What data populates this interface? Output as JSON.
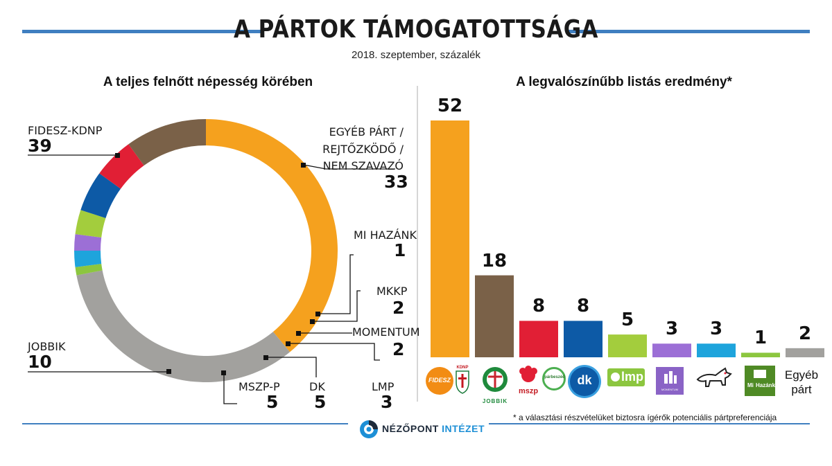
{
  "header": {
    "title": "A PÁRTOK TÁMOGATOTTSÁGA",
    "subtitle": "2018. szeptember, százalék"
  },
  "colors": {
    "fidesz": "#f5a11e",
    "other": "#a2a19e",
    "mihazank": "#8cc63f",
    "mkkp": "#1ea4dc",
    "momentum": "#9c6fd6",
    "lmp": "#a3cd3d",
    "dk": "#0d5aa6",
    "mszp": "#e11f35",
    "jobbik": "#7a6148",
    "accent_line": "#3f7fc0"
  },
  "chart_data": [
    {
      "type": "pie",
      "title": "A teljes felnőtt népesség körében",
      "slices": [
        {
          "label": "FIDESZ-KDNP",
          "value": 39
        },
        {
          "label": "EGYÉB PÁRT / REJTŐZKÖDŐ / NEM SZAVAZÓ",
          "value": 33
        },
        {
          "label": "MI HAZÁNK",
          "value": 1
        },
        {
          "label": "MKKP",
          "value": 2
        },
        {
          "label": "MOMENTUM",
          "value": 2
        },
        {
          "label": "LMP",
          "value": 3
        },
        {
          "label": "DK",
          "value": 5
        },
        {
          "label": "MSZP-P",
          "value": 5
        },
        {
          "label": "JOBBIK",
          "value": 10
        }
      ]
    },
    {
      "type": "bar",
      "title": "A legvalószínűbb listás eredmény*",
      "categories": [
        "FIDESZ KDNP",
        "JOBBIK",
        "mszp párbeszéd",
        "dk",
        "lmp",
        "MOMENTUM",
        "MKKP",
        "Mi Hazánk",
        "Egyéb párt"
      ],
      "values": [
        52,
        18,
        8,
        8,
        5,
        3,
        3,
        1,
        2
      ],
      "ylim": [
        0,
        52
      ]
    }
  ],
  "pie_labels": {
    "fidesz_name": "FIDESZ-KDNP",
    "fidesz_value": "39",
    "other_line1": "EGYÉB PÁRT /",
    "other_line2": "REJTŐZKÖDŐ /",
    "other_line3": "NEM SZAVAZÓ",
    "other_value": "33",
    "mihazank_name": "MI HAZÁNK",
    "mihazank_value": "1",
    "mkkp_name": "MKKP",
    "mkkp_value": "2",
    "momentum_name": "MOMENTUM",
    "momentum_value": "2",
    "lmp_name": "LMP",
    "lmp_value": "3",
    "dk_name": "DK",
    "dk_value": "5",
    "mszp_name": "MSZP-P",
    "mszp_value": "5",
    "jobbik_name": "JOBBIK",
    "jobbik_value": "10"
  },
  "logos": {
    "fidesz": "FIDESZ",
    "kdnp": "KDNP",
    "jobbik": "JOBBIK",
    "mszp": "mszp",
    "parbeszed": "párbeszéd",
    "dk": "dk",
    "lmp": "lmp",
    "momentum": "MOMENTUM",
    "mihazank_1": "Mi",
    "mihazank_2": "Hazánk",
    "egyeb_1": "Egyéb",
    "egyeb_2": "párt"
  },
  "footer": {
    "footnote": "* a választási részvételüket biztosra ígérők potenciális pártpreferenciája",
    "brand_a": "NÉZŐPONT",
    "brand_b": "INTÉZET"
  }
}
